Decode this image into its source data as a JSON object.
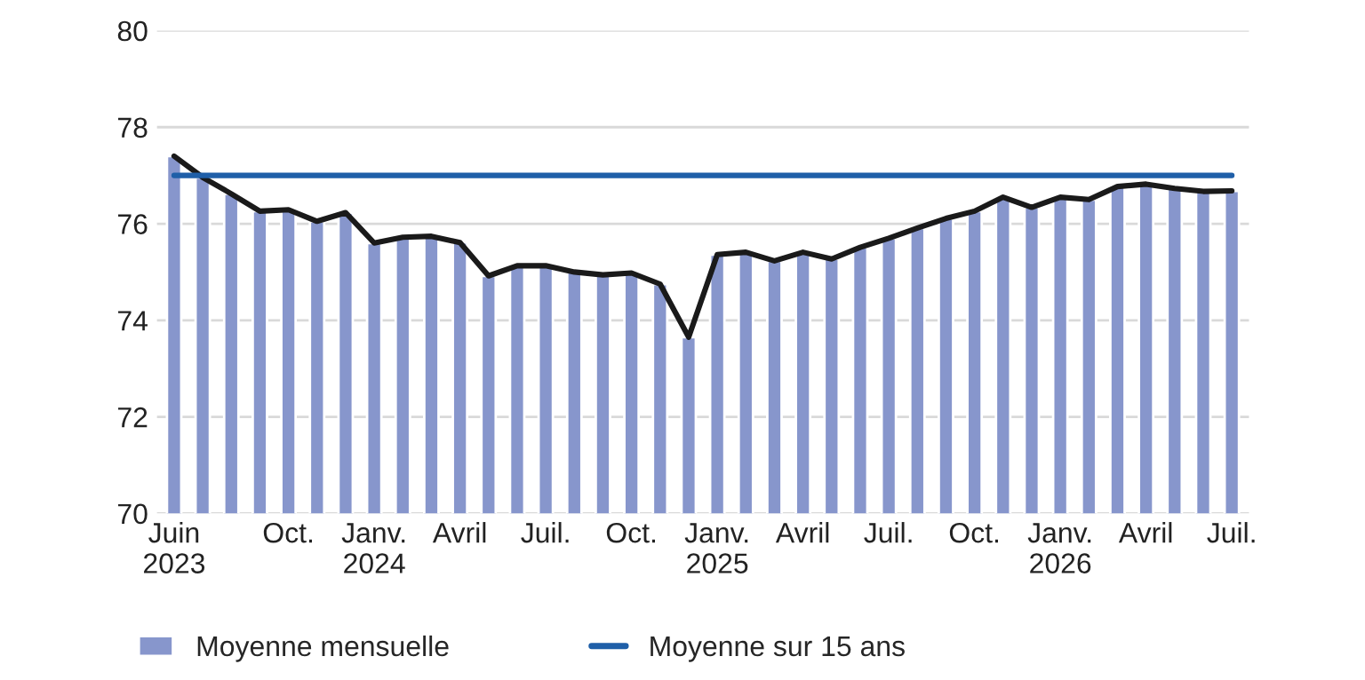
{
  "chart_data": {
    "type": "bar",
    "categories": [
      "Juin\n2023",
      null,
      null,
      null,
      "Oct.",
      null,
      null,
      "Janv.\n2024",
      null,
      null,
      "Avril",
      null,
      null,
      "Juil.",
      null,
      null,
      "Oct.",
      null,
      null,
      "Janv.\n2025",
      null,
      null,
      "Avril",
      null,
      null,
      "Juil.",
      null,
      null,
      "Oct.",
      null,
      null,
      "Janv.\n2026",
      null,
      null,
      "Avril",
      null,
      null,
      "Juil."
    ],
    "series": [
      {
        "name": "Moyenne mensuelle",
        "color": "#8796cc",
        "values": [
          77.4,
          76.96,
          76.62,
          76.26,
          76.29,
          76.05,
          76.23,
          75.6,
          75.72,
          75.74,
          75.61,
          74.92,
          75.13,
          75.13,
          75.0,
          74.94,
          74.98,
          74.75,
          73.65,
          75.36,
          75.41,
          75.23,
          75.41,
          75.27,
          75.51,
          75.7,
          75.91,
          76.11,
          76.26,
          76.55,
          76.34,
          76.55,
          76.5,
          76.77,
          76.82,
          76.73,
          76.67,
          76.68
        ]
      },
      {
        "type": "line",
        "color": "#1a1a1a",
        "values": [
          77.4,
          76.96,
          76.62,
          76.26,
          76.29,
          76.05,
          76.23,
          75.6,
          75.72,
          75.74,
          75.61,
          74.92,
          75.13,
          75.13,
          75.0,
          74.94,
          74.98,
          74.75,
          73.65,
          75.36,
          75.41,
          75.23,
          75.41,
          75.27,
          75.51,
          75.7,
          75.91,
          76.11,
          76.26,
          76.55,
          76.34,
          76.55,
          76.5,
          76.77,
          76.82,
          76.73,
          76.67,
          76.68
        ]
      },
      {
        "name": "Moyenne sur 15 ans",
        "type": "line",
        "color": "#1f5fa8",
        "values": [
          77,
          77,
          77,
          77,
          77,
          77,
          77,
          77,
          77,
          77,
          77,
          77,
          77,
          77,
          77,
          77,
          77,
          77,
          77,
          77,
          77,
          77,
          77,
          77,
          77,
          77,
          77,
          77,
          77,
          77,
          77,
          77,
          77,
          77,
          77,
          77,
          77,
          77
        ]
      }
    ],
    "ylim": [
      70,
      80
    ],
    "yticks": [
      70,
      72,
      74,
      76,
      78,
      80
    ],
    "grid": "y",
    "legend": "bottom left",
    "marker": "none",
    "line_style": "solid"
  }
}
